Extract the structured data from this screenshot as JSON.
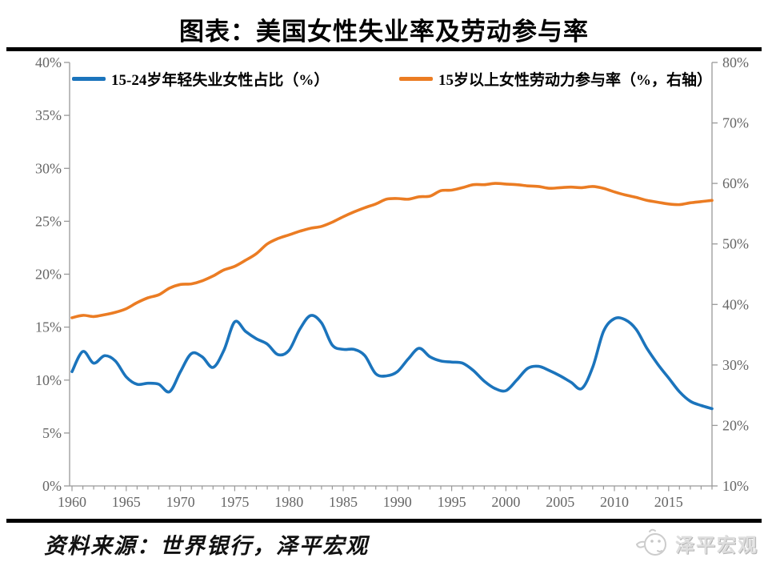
{
  "title": "图表：美国女性失业率及劳动参与率",
  "legend": {
    "items": [
      {
        "label": "15-24岁年轻失业女性占比（%）",
        "color": "#1b74bc"
      },
      {
        "label": "15岁以上女性劳动力参与率（%，右轴）",
        "color": "#eb7c23"
      }
    ]
  },
  "footer": {
    "source": "资料来源：世界银行，泽平宏观",
    "logo_text": "泽平宏观"
  },
  "colors": {
    "unemployment_line": "#1b74bc",
    "participation_line": "#eb7c23",
    "axis": "#999999",
    "tick_label": "#666666"
  },
  "chart_data": {
    "type": "line",
    "title": "图表：美国女性失业率及劳动参与率",
    "grid": false,
    "legend_position": "top",
    "x": [
      1960,
      1961,
      1962,
      1963,
      1964,
      1965,
      1966,
      1967,
      1968,
      1969,
      1970,
      1971,
      1972,
      1973,
      1974,
      1975,
      1976,
      1977,
      1978,
      1979,
      1980,
      1981,
      1982,
      1983,
      1984,
      1985,
      1986,
      1987,
      1988,
      1989,
      1990,
      1991,
      1992,
      1993,
      1994,
      1995,
      1996,
      1997,
      1998,
      1999,
      2000,
      2001,
      2002,
      2003,
      2004,
      2005,
      2006,
      2007,
      2008,
      2009,
      2010,
      2011,
      2012,
      2013,
      2014,
      2015,
      2016,
      2017,
      2018,
      2019
    ],
    "x_tick_labels": [
      "1960",
      "1965",
      "1970",
      "1975",
      "1980",
      "1985",
      "1990",
      "1995",
      "2000",
      "2005",
      "2010",
      "2015"
    ],
    "left_axis": {
      "min": 0,
      "max": 40,
      "ticks": [
        "0%",
        "5%",
        "10%",
        "15%",
        "20%",
        "25%",
        "30%",
        "35%",
        "40%"
      ]
    },
    "right_axis": {
      "min": 10,
      "max": 80,
      "ticks": [
        "10%",
        "20%",
        "30%",
        "40%",
        "50%",
        "60%",
        "70%",
        "80%"
      ]
    },
    "series": [
      {
        "name": "15-24岁年轻失业女性占比（%）",
        "axis": "left",
        "color": "#1b74bc",
        "values": [
          10.8,
          12.7,
          11.6,
          12.3,
          11.8,
          10.3,
          9.6,
          9.7,
          9.6,
          8.9,
          10.8,
          12.5,
          12.2,
          11.2,
          12.8,
          15.5,
          14.6,
          13.9,
          13.4,
          12.4,
          12.8,
          14.8,
          16.1,
          15.4,
          13.3,
          12.9,
          12.9,
          12.3,
          10.6,
          10.4,
          10.8,
          12.0,
          13.0,
          12.2,
          11.8,
          11.7,
          11.6,
          10.9,
          9.9,
          9.2,
          9.0,
          10.0,
          11.1,
          11.3,
          10.9,
          10.4,
          9.8,
          9.2,
          11.2,
          14.6,
          15.8,
          15.7,
          14.8,
          13.0,
          11.5,
          10.2,
          8.9,
          8.0,
          7.6,
          7.3
        ]
      },
      {
        "name": "15岁以上女性劳动力参与率（%，右轴）",
        "axis": "right",
        "color": "#eb7c23",
        "values": [
          37.8,
          38.2,
          38.0,
          38.3,
          38.7,
          39.3,
          40.3,
          41.1,
          41.6,
          42.7,
          43.3,
          43.4,
          43.9,
          44.7,
          45.7,
          46.3,
          47.3,
          48.4,
          50.0,
          50.9,
          51.5,
          52.1,
          52.6,
          52.9,
          53.6,
          54.5,
          55.3,
          56.0,
          56.6,
          57.4,
          57.5,
          57.4,
          57.8,
          57.9,
          58.8,
          58.9,
          59.3,
          59.8,
          59.8,
          60.0,
          59.9,
          59.8,
          59.6,
          59.5,
          59.2,
          59.3,
          59.4,
          59.3,
          59.5,
          59.2,
          58.6,
          58.1,
          57.7,
          57.2,
          56.9,
          56.6,
          56.5,
          56.8,
          57.0,
          57.2
        ]
      }
    ]
  }
}
